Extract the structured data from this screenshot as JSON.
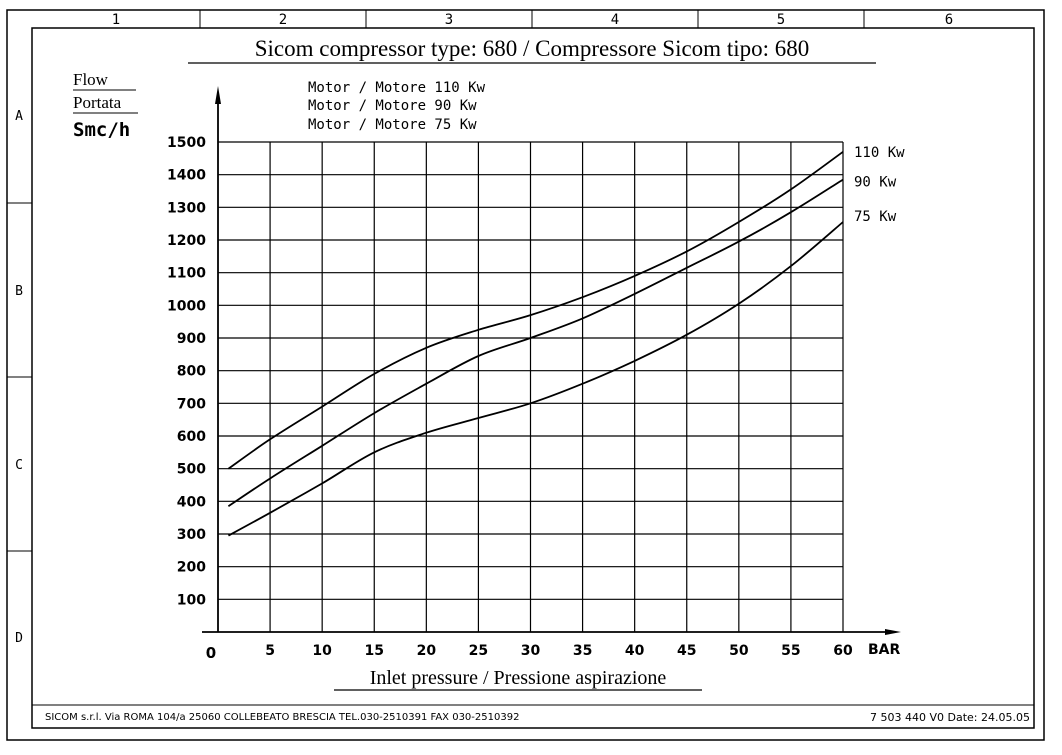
{
  "frame": {
    "columns": [
      "1",
      "2",
      "3",
      "4",
      "5",
      "6"
    ],
    "rows": [
      "A",
      "B",
      "C",
      "D"
    ]
  },
  "title": "Sicom compressor type: 680 / Compressore Sicom tipo: 680",
  "y_unit_labels": [
    "Flow",
    "Portata",
    "Smc/h"
  ],
  "legend_lines": [
    "Motor / Motore 110 Kw",
    "Motor / Motore 90 Kw",
    "Motor / Motore 75 Kw"
  ],
  "x_axis_unit": "BAR",
  "x_origin_label": "0",
  "footer": {
    "company": "SICOM s.r.l. Via ROMA 104/a 25060 COLLEBEATO BRESCIA TEL.030-2510391 FAX 030-2510392",
    "document": "7 503 440  V0 Date: 24.05.05"
  },
  "chart_data": {
    "type": "line",
    "title": "Sicom compressor type: 680 / Compressore Sicom tipo: 680",
    "xlabel": "Inlet pressure / Pressione aspirazione",
    "ylabel": "Flow / Portata Smc/h",
    "x_ticks": [
      "5",
      "10",
      "15",
      "20",
      "25",
      "30",
      "35",
      "40",
      "45",
      "50",
      "55",
      "60"
    ],
    "y_ticks": [
      "100",
      "200",
      "300",
      "400",
      "500",
      "600",
      "700",
      "800",
      "900",
      "1000",
      "1100",
      "1200",
      "1300",
      "1400",
      "1500"
    ],
    "xlim": [
      0,
      60
    ],
    "ylim": [
      0,
      1500
    ],
    "grid": true,
    "series": [
      {
        "name": "110 Kw",
        "x": [
          1,
          5,
          10,
          15,
          20,
          25,
          30,
          35,
          40,
          45,
          50,
          55,
          60
        ],
        "values": [
          500,
          590,
          690,
          790,
          870,
          925,
          970,
          1025,
          1090,
          1165,
          1255,
          1355,
          1470
        ]
      },
      {
        "name": "90 Kw",
        "x": [
          1,
          5,
          10,
          15,
          20,
          25,
          30,
          35,
          40,
          45,
          50,
          55,
          60
        ],
        "values": [
          385,
          470,
          570,
          670,
          760,
          845,
          900,
          960,
          1035,
          1115,
          1195,
          1285,
          1385
        ]
      },
      {
        "name": "75 Kw",
        "x": [
          1,
          5,
          10,
          15,
          20,
          25,
          30,
          35,
          40,
          45,
          50,
          55,
          60
        ],
        "values": [
          295,
          365,
          455,
          550,
          610,
          655,
          700,
          760,
          830,
          910,
          1005,
          1120,
          1255
        ]
      }
    ]
  }
}
